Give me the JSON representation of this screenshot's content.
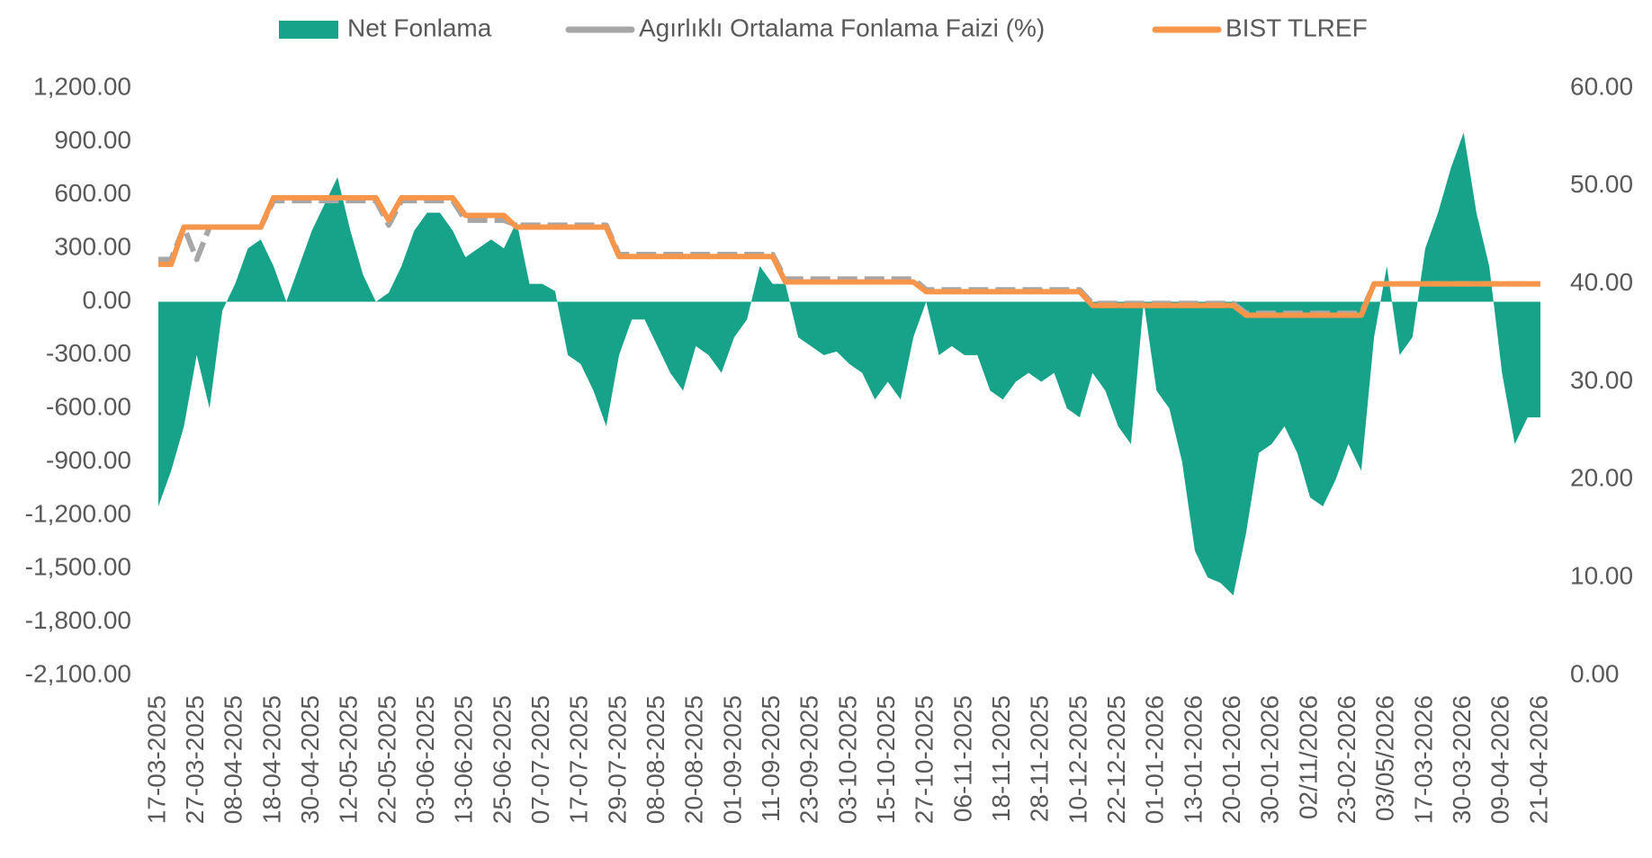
{
  "chart_data": {
    "type": "combo",
    "categories": [
      "17-03-2025",
      null,
      null,
      "27-03-2025",
      null,
      null,
      "08-04-2025",
      null,
      null,
      "18-04-2025",
      null,
      null,
      "30-04-2025",
      null,
      null,
      "12-05-2025",
      null,
      null,
      "22-05-2025",
      null,
      null,
      "03-06-2025",
      null,
      null,
      "13-06-2025",
      null,
      null,
      "25-06-2025",
      null,
      null,
      "07-07-2025",
      null,
      null,
      "17-07-2025",
      null,
      null,
      "29-07-2025",
      null,
      null,
      "08-08-2025",
      null,
      null,
      "20-08-2025",
      null,
      null,
      "01-09-2025",
      null,
      null,
      "11-09-2025",
      null,
      null,
      "23-09-2025",
      null,
      null,
      "03-10-2025",
      null,
      null,
      "15-10-2025",
      null,
      null,
      "27-10-2025",
      null,
      null,
      "06-11-2025",
      null,
      null,
      "18-11-2025",
      null,
      null,
      "28-11-2025",
      null,
      null,
      "10-12-2025",
      null,
      null,
      "22-12-2025",
      null,
      null,
      "01-01-2026",
      null,
      null,
      "13-01-2026",
      null,
      null,
      "20-01-2026",
      null,
      null,
      "30-01-2026",
      null,
      null,
      "02/11/2026",
      null,
      null,
      "23-02-2026",
      null,
      null,
      "03/05/2026",
      null,
      null,
      "17-03-2026",
      null,
      null,
      "30-03-2026",
      null,
      null,
      "09-04-2026",
      null,
      null,
      "21-04-2026"
    ],
    "series": [
      {
        "name": "Net Fonlama",
        "kind": "area",
        "color": "#17a38a",
        "values": [
          -1150,
          -950,
          -700,
          -300,
          -600,
          -50,
          100,
          300,
          350,
          200,
          0,
          200,
          400,
          550,
          700,
          400,
          150,
          0,
          50,
          200,
          400,
          500,
          500,
          400,
          250,
          300,
          350,
          300,
          450,
          100,
          100,
          60,
          -300,
          -350,
          -500,
          -700,
          -300,
          -100,
          -100,
          -250,
          -400,
          -500,
          -250,
          -300,
          -400,
          -200,
          -100,
          200,
          100,
          100,
          -200,
          -250,
          -300,
          -280,
          -350,
          -400,
          -550,
          -450,
          -550,
          -200,
          0,
          -300,
          -250,
          -300,
          -300,
          -500,
          -550,
          -450,
          -400,
          -450,
          -400,
          -600,
          -650,
          -400,
          -500,
          -700,
          -800,
          0,
          -500,
          -600,
          -900,
          -1400,
          -1550,
          -1580,
          -1650,
          -1300,
          -850,
          -800,
          -700,
          -850,
          -1100,
          -1150,
          -1000,
          -800,
          -950,
          -200,
          200,
          -300,
          -200,
          300,
          500,
          750,
          950,
          500,
          200,
          -400,
          -800,
          -650,
          -650
        ]
      },
      {
        "name": "Agırlıklı Ortalama Fonlama Faizi (%)",
        "kind": "line",
        "dash": true,
        "axis": "y2",
        "color": "#a6a6a6",
        "values": [
          42.5,
          42.5,
          45.8,
          42.5,
          45.8,
          45.8,
          45.8,
          45.8,
          45.8,
          48.5,
          48.5,
          48.5,
          48.5,
          48.5,
          48.5,
          48.5,
          48.5,
          48.5,
          46,
          48.5,
          48.5,
          48.5,
          48.5,
          48.5,
          46.5,
          46.5,
          46.5,
          46.5,
          46,
          46,
          46,
          46,
          46,
          46,
          46,
          46,
          43,
          43,
          43,
          43,
          43,
          43,
          43,
          43,
          43,
          43,
          43,
          43,
          43,
          40.5,
          40.5,
          40.5,
          40.5,
          40.5,
          40.5,
          40.5,
          40.5,
          40.5,
          40.5,
          40.5,
          39.4,
          39.4,
          39.4,
          39.4,
          39.4,
          39.4,
          39.4,
          39.4,
          39.4,
          39.4,
          39.4,
          39.4,
          39.4,
          38,
          38,
          38,
          38,
          38,
          38,
          38,
          38,
          38,
          38,
          38,
          38,
          37,
          37,
          37,
          37,
          37,
          37,
          37,
          37,
          37,
          37,
          40,
          40,
          40,
          40,
          40,
          40,
          40,
          40,
          40,
          40,
          40,
          40,
          40,
          40
        ]
      },
      {
        "name": "BIST TLREF",
        "kind": "line",
        "axis": "y2",
        "color": "#f7964a",
        "values": [
          42,
          42,
          45.8,
          45.8,
          45.8,
          45.8,
          45.8,
          45.8,
          45.8,
          48.8,
          48.8,
          48.8,
          48.8,
          48.8,
          48.8,
          48.8,
          48.8,
          48.8,
          46.5,
          48.8,
          48.8,
          48.8,
          48.8,
          48.8,
          47,
          47,
          47,
          47,
          45.8,
          45.8,
          45.8,
          45.8,
          45.8,
          45.8,
          45.8,
          45.8,
          42.8,
          42.8,
          42.8,
          42.8,
          42.8,
          42.8,
          42.8,
          42.8,
          42.8,
          42.8,
          42.8,
          42.8,
          42.8,
          40.2,
          40.2,
          40.2,
          40.2,
          40.2,
          40.2,
          40.2,
          40.2,
          40.2,
          40.2,
          40.2,
          39.2,
          39.2,
          39.2,
          39.2,
          39.2,
          39.2,
          39.2,
          39.2,
          39.2,
          39.2,
          39.2,
          39.2,
          39.2,
          37.8,
          37.8,
          37.8,
          37.8,
          37.8,
          37.8,
          37.8,
          37.8,
          37.8,
          37.8,
          37.8,
          37.8,
          36.8,
          36.8,
          36.8,
          36.8,
          36.8,
          36.8,
          36.8,
          36.8,
          36.8,
          36.8,
          40,
          40,
          40,
          40,
          40,
          40,
          40,
          40,
          40,
          40,
          40,
          40,
          40,
          40
        ]
      }
    ],
    "ylim": [
      -2100,
      1200
    ],
    "yticks": [
      {
        "value": -2100,
        "label": "-2,100.00"
      },
      {
        "value": -1800,
        "label": "-1,800.00"
      },
      {
        "value": -1500,
        "label": "-1,500.00"
      },
      {
        "value": -1200,
        "label": "-1,200.00"
      },
      {
        "value": -900,
        "label": "-900.00"
      },
      {
        "value": -600,
        "label": "-600.00"
      },
      {
        "value": -300,
        "label": "-300.00"
      },
      {
        "value": 0,
        "label": "0.00"
      },
      {
        "value": 300,
        "label": "300.00"
      },
      {
        "value": 600,
        "label": "600.00"
      },
      {
        "value": 900,
        "label": "900.00"
      },
      {
        "value": 1200,
        "label": "1,200.00"
      }
    ],
    "y2lim": [
      0,
      60
    ],
    "y2ticks": [
      {
        "value": 0,
        "label": "0.00"
      },
      {
        "value": 10,
        "label": "10.00"
      },
      {
        "value": 20,
        "label": "20.00"
      },
      {
        "value": 30,
        "label": "30.00"
      },
      {
        "value": 40,
        "label": "40.00"
      },
      {
        "value": 50,
        "label": "50.00"
      },
      {
        "value": 60,
        "label": "60.00"
      }
    ],
    "legend": "top"
  }
}
